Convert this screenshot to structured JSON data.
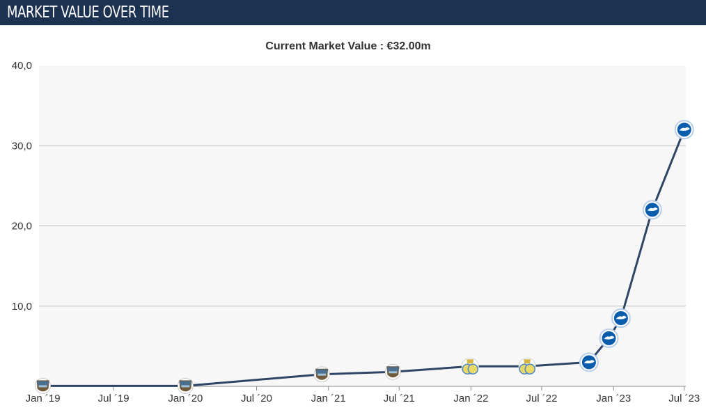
{
  "header": {
    "title": "MARKET VALUE OVER TIME"
  },
  "colors": {
    "header_bg": "#1d3150",
    "line": "#2f4566",
    "plot_bg": "#f7f7f7",
    "grid": "#bfbfbf",
    "club_a": "#4a6f8f",
    "club_b": "#e9d968",
    "club_c": "#0a5cad"
  },
  "chart_data": {
    "type": "line",
    "title": "",
    "subtitle": "Current Market Value : €32.00m",
    "xlabel": "",
    "ylabel": "",
    "ylim": [
      0,
      40
    ],
    "y_ticks": [
      10,
      20,
      30,
      40
    ],
    "y_tick_labels": [
      "10,0",
      "20,0",
      "30,0",
      "40,0"
    ],
    "x_ticks": [
      "2019-01",
      "2019-07",
      "2020-01",
      "2020-07",
      "2021-01",
      "2021-07",
      "2022-01",
      "2022-07",
      "2023-01",
      "2023-07"
    ],
    "x_tick_labels": [
      "Jan ´19",
      "Jul ´19",
      "Jan ´20",
      "Jul ´20",
      "Jan ´21",
      "Jul ´21",
      "Jan ´22",
      "Jul ´22",
      "Jan ´23",
      "Jul ´23"
    ],
    "grid": true,
    "series": [
      {
        "points": [
          {
            "date": "2019-01-01",
            "value": 0.05,
            "club": "club_a"
          },
          {
            "date": "2020-01-01",
            "value": 0.05,
            "club": "club_a"
          },
          {
            "date": "2020-12-15",
            "value": 1.5,
            "club": "club_a"
          },
          {
            "date": "2021-06-15",
            "value": 1.8,
            "club": "club_a"
          },
          {
            "date": "2021-12-30",
            "value": 2.5,
            "club": "club_b"
          },
          {
            "date": "2022-05-25",
            "value": 2.5,
            "club": "club_b"
          },
          {
            "date": "2022-10-30",
            "value": 3.0,
            "club": "club_c"
          },
          {
            "date": "2022-12-20",
            "value": 6.0,
            "club": "club_c"
          },
          {
            "date": "2023-01-20",
            "value": 8.5,
            "club": "club_c"
          },
          {
            "date": "2023-04-10",
            "value": 22.0,
            "club": "club_c"
          },
          {
            "date": "2023-07-01",
            "value": 32.0,
            "club": "club_c"
          }
        ]
      }
    ]
  }
}
